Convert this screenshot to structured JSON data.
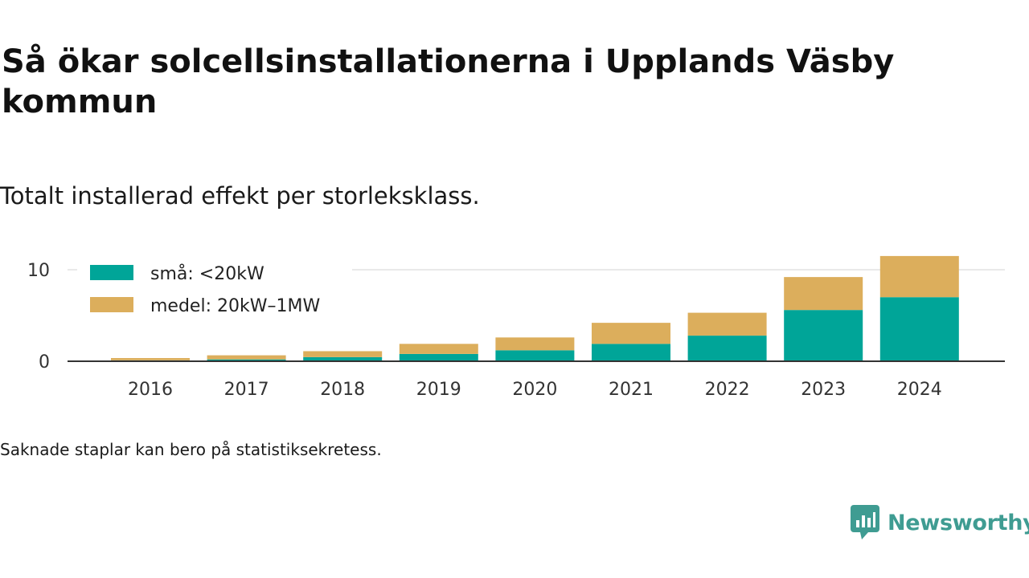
{
  "title": "Så ökar solcellsinstallationerna i Upplands Väsby kommun",
  "subtitle": "Totalt installerad effekt per storleksklass.",
  "footnote": "Saknade staplar kan bero på statistiksekretess.",
  "brand": {
    "name": "Newsworthy",
    "icon": "newsworthy-logo-icon",
    "color": "#3f9c92"
  },
  "chart_data": {
    "type": "bar",
    "stacked": true,
    "categories": [
      "2016",
      "2017",
      "2018",
      "2019",
      "2020",
      "2021",
      "2022",
      "2023",
      "2024"
    ],
    "series": [
      {
        "name": "små: <20kW",
        "color": "#00a598",
        "values": [
          0.1,
          0.2,
          0.45,
          0.8,
          1.2,
          1.9,
          2.8,
          5.6,
          7.0
        ]
      },
      {
        "name": "medel: 20kW–1MW",
        "color": "#dcae5c",
        "values": [
          0.25,
          0.45,
          0.65,
          1.1,
          1.4,
          2.3,
          2.5,
          3.6,
          4.5
        ]
      }
    ],
    "yticks": [
      0,
      10
    ],
    "ylim": [
      0,
      11.5
    ],
    "grid": true,
    "legend_position": "top-left"
  }
}
